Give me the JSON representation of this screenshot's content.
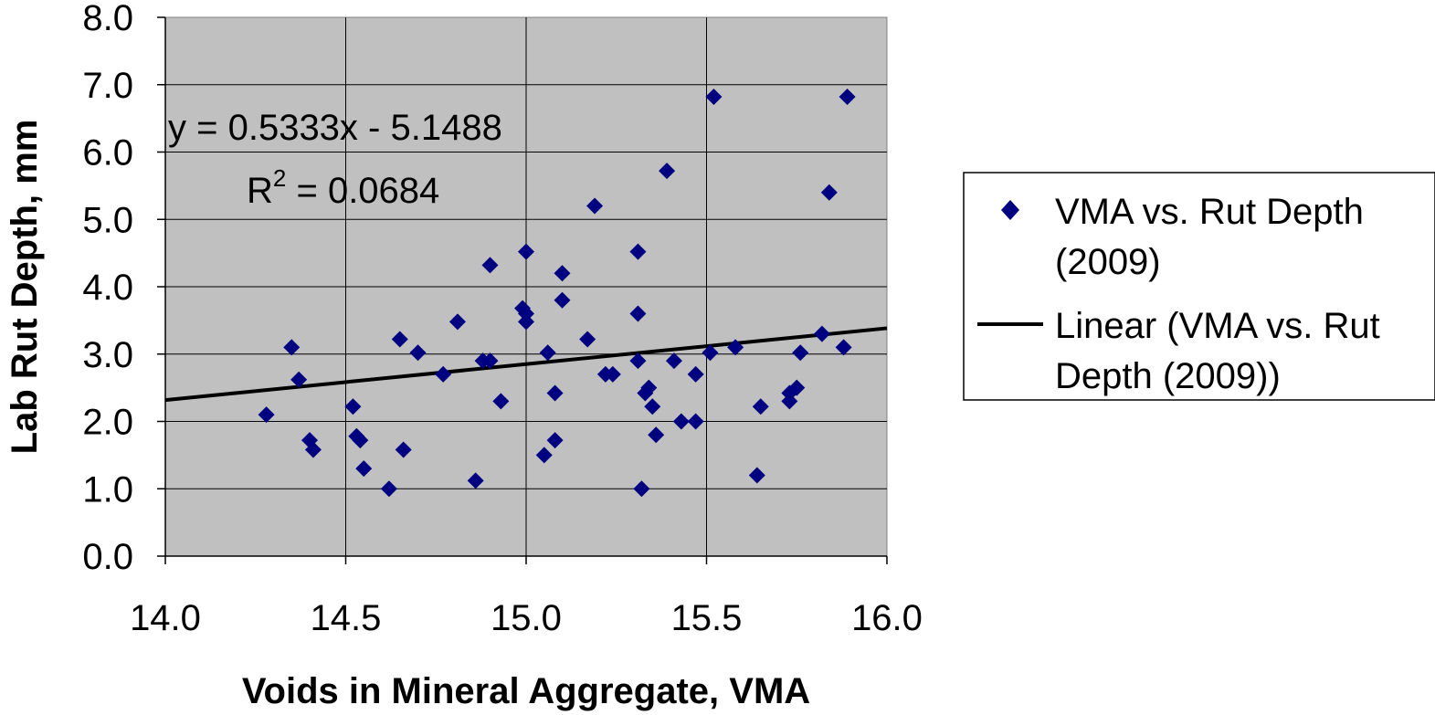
{
  "chart_data": {
    "type": "scatter",
    "xlabel": "Voids in Mineral Aggregate, VMA",
    "ylabel": "Lab Rut Depth, mm",
    "xlim": [
      14.0,
      16.0
    ],
    "ylim": [
      0.0,
      8.0
    ],
    "x_ticks": [
      "14.0",
      "14.5",
      "15.0",
      "15.5",
      "16.0"
    ],
    "y_ticks": [
      "0.0",
      "1.0",
      "2.0",
      "3.0",
      "4.0",
      "5.0",
      "6.0",
      "7.0",
      "8.0"
    ],
    "x_tick_values": [
      14.0,
      14.5,
      15.0,
      15.5,
      16.0
    ],
    "y_tick_values": [
      0,
      1,
      2,
      3,
      4,
      5,
      6,
      7,
      8
    ],
    "grid": true,
    "plot_background": "#c0c0c0",
    "marker_color": "#000080",
    "trend_color": "#000000",
    "legend_position": "right",
    "series": [
      {
        "name": "VMA vs. Rut Depth (2009)",
        "name_lines": [
          "VMA vs. Rut Depth",
          "(2009)"
        ],
        "points": [
          [
            14.28,
            2.1
          ],
          [
            14.35,
            3.1
          ],
          [
            14.37,
            2.62
          ],
          [
            14.4,
            1.72
          ],
          [
            14.41,
            1.58
          ],
          [
            14.52,
            2.22
          ],
          [
            14.53,
            1.78
          ],
          [
            14.54,
            1.72
          ],
          [
            14.55,
            1.3
          ],
          [
            14.62,
            1.0
          ],
          [
            14.65,
            3.22
          ],
          [
            14.66,
            1.58
          ],
          [
            14.7,
            3.02
          ],
          [
            14.77,
            2.7
          ],
          [
            14.81,
            3.48
          ],
          [
            14.86,
            1.12
          ],
          [
            14.88,
            2.9
          ],
          [
            14.9,
            2.9
          ],
          [
            14.9,
            4.32
          ],
          [
            14.93,
            2.3
          ],
          [
            14.99,
            3.68
          ],
          [
            15.0,
            4.52
          ],
          [
            15.0,
            3.48
          ],
          [
            15.0,
            3.6
          ],
          [
            15.05,
            1.5
          ],
          [
            15.06,
            3.02
          ],
          [
            15.08,
            2.42
          ],
          [
            15.08,
            1.72
          ],
          [
            15.1,
            4.2
          ],
          [
            15.1,
            3.8
          ],
          [
            15.17,
            3.22
          ],
          [
            15.19,
            5.2
          ],
          [
            15.22,
            2.7
          ],
          [
            15.24,
            2.7
          ],
          [
            15.31,
            4.52
          ],
          [
            15.31,
            3.6
          ],
          [
            15.31,
            2.9
          ],
          [
            15.32,
            1.0
          ],
          [
            15.33,
            2.42
          ],
          [
            15.34,
            2.5
          ],
          [
            15.35,
            2.22
          ],
          [
            15.36,
            1.8
          ],
          [
            15.39,
            5.72
          ],
          [
            15.41,
            2.9
          ],
          [
            15.43,
            2.0
          ],
          [
            15.47,
            2.0
          ],
          [
            15.47,
            2.7
          ],
          [
            15.51,
            3.02
          ],
          [
            15.52,
            6.82
          ],
          [
            15.58,
            3.1
          ],
          [
            15.64,
            1.2
          ],
          [
            15.65,
            2.22
          ],
          [
            15.73,
            2.3
          ],
          [
            15.73,
            2.42
          ],
          [
            15.75,
            2.5
          ],
          [
            15.76,
            3.02
          ],
          [
            15.82,
            3.3
          ],
          [
            15.84,
            5.4
          ],
          [
            15.88,
            3.1
          ],
          [
            15.89,
            6.82
          ]
        ]
      },
      {
        "name": "Linear (VMA vs. Rut Depth (2009))",
        "name_lines": [
          "Linear (VMA vs. Rut",
          "Depth (2009))"
        ],
        "type": "line",
        "slope": 0.5333,
        "intercept": -5.1488
      }
    ],
    "annotations": {
      "equation": "y = 0.5333x - 5.1488",
      "r2_label": "R",
      "r2_sup": "2",
      "r2_value": " = 0.0684"
    }
  }
}
